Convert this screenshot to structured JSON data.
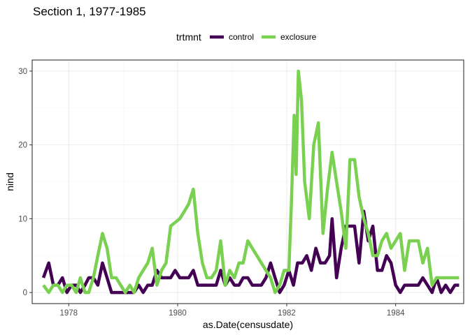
{
  "chart_data": {
    "type": "line",
    "title": "Section 1, 1977-1985",
    "xlabel": "as.Date(censusdate)",
    "ylabel": "nind",
    "legend": {
      "title": "trtmnt",
      "position": "top"
    },
    "xlim": [
      "1977-05-01",
      "1985-04-01"
    ],
    "ylim": [
      -1.5,
      31.5
    ],
    "x_ticks": [
      {
        "date": "1978-01-01",
        "label": "1978"
      },
      {
        "date": "1980-01-01",
        "label": "1980"
      },
      {
        "date": "1982-01-01",
        "label": "1982"
      },
      {
        "date": "1984-01-01",
        "label": "1984"
      }
    ],
    "y_ticks": [
      0,
      10,
      20,
      30
    ],
    "grid": true,
    "series": [
      {
        "name": "control",
        "color": "#440154",
        "points": [
          [
            "1977-07-15",
            2
          ],
          [
            "1977-08-20",
            4
          ],
          [
            "1977-09-20",
            1
          ],
          [
            "1977-10-20",
            1
          ],
          [
            "1977-11-20",
            2
          ],
          [
            "1977-12-20",
            0
          ],
          [
            "1978-01-20",
            1
          ],
          [
            "1978-02-20",
            1
          ],
          [
            "1978-03-20",
            0
          ],
          [
            "1978-04-20",
            1
          ],
          [
            "1978-05-15",
            2
          ],
          [
            "1978-06-15",
            2
          ],
          [
            "1978-07-15",
            1
          ],
          [
            "1978-08-15",
            4
          ],
          [
            "1978-09-15",
            2
          ],
          [
            "1978-10-15",
            0
          ],
          [
            "1978-11-15",
            0
          ],
          [
            "1978-12-15",
            0
          ],
          [
            "1979-01-15",
            0
          ],
          [
            "1979-02-15",
            0
          ],
          [
            "1979-03-15",
            0
          ],
          [
            "1979-04-15",
            1
          ],
          [
            "1979-05-15",
            0
          ],
          [
            "1979-06-15",
            1
          ],
          [
            "1979-07-15",
            1
          ],
          [
            "1979-08-15",
            3
          ],
          [
            "1979-09-15",
            2
          ],
          [
            "1979-10-15",
            2
          ],
          [
            "1979-11-15",
            2
          ],
          [
            "1979-12-15",
            3
          ],
          [
            "1980-01-15",
            2
          ],
          [
            "1980-02-15",
            2
          ],
          [
            "1980-03-15",
            2
          ],
          [
            "1980-04-15",
            3
          ],
          [
            "1980-05-15",
            1
          ],
          [
            "1980-06-15",
            1
          ],
          [
            "1980-07-15",
            1
          ],
          [
            "1980-08-15",
            1
          ],
          [
            "1980-09-15",
            1
          ],
          [
            "1980-10-15",
            3
          ],
          [
            "1980-11-15",
            1
          ],
          [
            "1980-12-15",
            2
          ],
          [
            "1981-01-15",
            1
          ],
          [
            "1981-02-15",
            1
          ],
          [
            "1981-03-15",
            2
          ],
          [
            "1981-04-15",
            2
          ],
          [
            "1981-05-15",
            1
          ],
          [
            "1981-06-15",
            1
          ],
          [
            "1981-07-15",
            1
          ],
          [
            "1981-08-15",
            2
          ],
          [
            "1981-09-15",
            4
          ],
          [
            "1981-10-15",
            2
          ],
          [
            "1981-11-15",
            0
          ],
          [
            "1981-12-15",
            1
          ],
          [
            "1982-01-15",
            3
          ],
          [
            "1982-02-15",
            1
          ],
          [
            "1982-03-15",
            4
          ],
          [
            "1982-04-15",
            4
          ],
          [
            "1982-05-15",
            5
          ],
          [
            "1982-06-15",
            3
          ],
          [
            "1982-07-15",
            6
          ],
          [
            "1982-08-15",
            4
          ],
          [
            "1982-09-15",
            4
          ],
          [
            "1982-10-15",
            5
          ],
          [
            "1982-11-01",
            10
          ],
          [
            "1982-12-01",
            2
          ],
          [
            "1983-01-01",
            6
          ],
          [
            "1983-02-01",
            9
          ],
          [
            "1983-03-01",
            9
          ],
          [
            "1983-04-01",
            9
          ],
          [
            "1983-05-01",
            4
          ],
          [
            "1983-06-01",
            11
          ],
          [
            "1983-07-01",
            7
          ],
          [
            "1983-08-01",
            9
          ],
          [
            "1983-09-01",
            3
          ],
          [
            "1983-10-01",
            3
          ],
          [
            "1983-11-01",
            5
          ],
          [
            "1983-12-01",
            4
          ],
          [
            "1984-01-01",
            1
          ],
          [
            "1984-02-01",
            0
          ],
          [
            "1984-03-01",
            1
          ],
          [
            "1984-04-01",
            1
          ],
          [
            "1984-05-01",
            1
          ],
          [
            "1984-06-01",
            1
          ],
          [
            "1984-07-01",
            2
          ],
          [
            "1984-08-01",
            1
          ],
          [
            "1984-09-01",
            0
          ],
          [
            "1984-10-01",
            2
          ],
          [
            "1984-11-01",
            0
          ],
          [
            "1984-12-01",
            1
          ],
          [
            "1985-01-01",
            0
          ],
          [
            "1985-02-01",
            1
          ],
          [
            "1985-03-01",
            1
          ]
        ]
      },
      {
        "name": "exclosure",
        "color": "#7AD151",
        "points": [
          [
            "1977-07-15",
            1
          ],
          [
            "1977-08-20",
            0
          ],
          [
            "1977-09-20",
            1
          ],
          [
            "1977-10-20",
            1
          ],
          [
            "1977-11-20",
            0
          ],
          [
            "1977-12-20",
            1
          ],
          [
            "1978-01-20",
            1
          ],
          [
            "1978-02-20",
            0
          ],
          [
            "1978-03-20",
            2
          ],
          [
            "1978-04-20",
            0
          ],
          [
            "1978-05-15",
            0
          ],
          [
            "1978-06-15",
            2
          ],
          [
            "1978-07-15",
            5
          ],
          [
            "1978-08-15",
            8
          ],
          [
            "1978-09-15",
            6
          ],
          [
            "1978-10-15",
            2
          ],
          [
            "1978-11-15",
            2
          ],
          [
            "1978-12-15",
            1
          ],
          [
            "1979-01-15",
            0
          ],
          [
            "1979-02-15",
            1
          ],
          [
            "1979-03-15",
            0
          ],
          [
            "1979-04-15",
            2
          ],
          [
            "1979-05-15",
            3
          ],
          [
            "1979-06-15",
            4
          ],
          [
            "1979-07-15",
            6
          ],
          [
            "1979-08-15",
            1
          ],
          [
            "1979-09-15",
            3
          ],
          [
            "1979-10-15",
            4
          ],
          [
            "1979-11-15",
            9
          ],
          [
            "1979-12-15",
            9.5
          ],
          [
            "1980-01-15",
            10
          ],
          [
            "1980-02-15",
            11
          ],
          [
            "1980-03-15",
            12
          ],
          [
            "1980-04-15",
            14
          ],
          [
            "1980-05-15",
            8
          ],
          [
            "1980-06-15",
            4
          ],
          [
            "1980-07-15",
            2
          ],
          [
            "1980-08-15",
            2
          ],
          [
            "1980-09-15",
            3
          ],
          [
            "1980-10-15",
            7
          ],
          [
            "1980-11-15",
            1
          ],
          [
            "1980-12-15",
            3
          ],
          [
            "1981-01-15",
            2
          ],
          [
            "1981-02-15",
            4
          ],
          [
            "1981-03-15",
            4
          ],
          [
            "1981-04-15",
            7
          ],
          [
            "1981-05-15",
            6
          ],
          [
            "1981-06-15",
            5
          ],
          [
            "1981-07-15",
            4
          ],
          [
            "1981-08-15",
            3
          ],
          [
            "1981-09-15",
            2
          ],
          [
            "1981-10-15",
            0
          ],
          [
            "1981-11-15",
            1
          ],
          [
            "1981-12-15",
            3
          ],
          [
            "1982-01-15",
            3
          ],
          [
            "1982-02-01",
            12
          ],
          [
            "1982-02-20",
            24
          ],
          [
            "1982-03-05",
            16
          ],
          [
            "1982-03-20",
            30
          ],
          [
            "1982-04-10",
            26
          ],
          [
            "1982-05-01",
            15
          ],
          [
            "1982-06-01",
            10
          ],
          [
            "1982-07-01",
            20
          ],
          [
            "1982-08-01",
            23
          ],
          [
            "1982-09-01",
            8
          ],
          [
            "1982-10-01",
            14
          ],
          [
            "1982-11-01",
            19
          ],
          [
            "1982-12-01",
            15
          ],
          [
            "1983-01-01",
            11
          ],
          [
            "1983-02-01",
            6
          ],
          [
            "1983-03-01",
            18
          ],
          [
            "1983-04-01",
            18
          ],
          [
            "1983-05-01",
            13
          ],
          [
            "1983-06-01",
            10
          ],
          [
            "1983-07-01",
            8
          ],
          [
            "1983-08-01",
            5
          ],
          [
            "1983-09-01",
            5
          ],
          [
            "1983-10-01",
            7
          ],
          [
            "1983-11-01",
            8
          ],
          [
            "1983-12-01",
            6
          ],
          [
            "1984-01-01",
            7
          ],
          [
            "1984-02-01",
            8
          ],
          [
            "1984-03-01",
            3
          ],
          [
            "1984-04-01",
            7
          ],
          [
            "1984-05-01",
            7
          ],
          [
            "1984-06-01",
            7
          ],
          [
            "1984-07-01",
            4
          ],
          [
            "1984-08-01",
            6
          ],
          [
            "1984-09-01",
            1
          ],
          [
            "1984-10-01",
            2
          ],
          [
            "1984-11-01",
            2
          ],
          [
            "1984-12-01",
            2
          ],
          [
            "1985-01-01",
            2
          ],
          [
            "1985-02-01",
            2
          ],
          [
            "1985-03-01",
            2
          ]
        ]
      }
    ]
  }
}
